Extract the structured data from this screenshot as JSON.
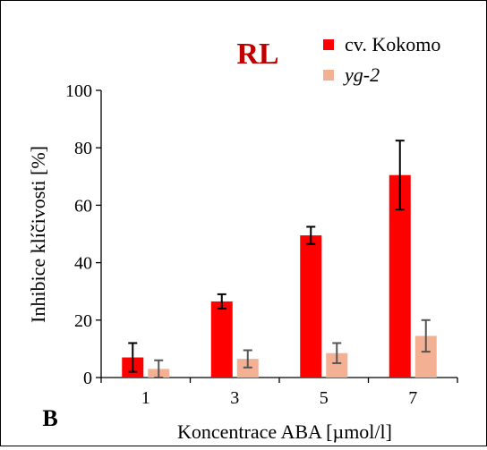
{
  "chart_data": {
    "type": "bar",
    "title": "RL",
    "panel_label": "B",
    "xlabel": "Koncentrace ABA [µmol/l]",
    "ylabel": "Inhibice klíčivosti [%]",
    "categories": [
      "1",
      "3",
      "5",
      "7"
    ],
    "ylim": [
      0,
      100
    ],
    "yticks": [
      "0",
      "20",
      "40",
      "60",
      "80",
      "100"
    ],
    "grid": false,
    "legend_position": "top-right",
    "series": [
      {
        "name": "cv. Kokomo",
        "color": "#ff0000",
        "values": [
          7,
          26.5,
          49.5,
          70.5
        ],
        "errors": [
          5,
          2.5,
          3,
          12
        ]
      },
      {
        "name": "yg-2",
        "color": "#f4b093",
        "values": [
          3,
          6.5,
          8.5,
          14.5
        ],
        "errors": [
          3,
          3,
          3.5,
          5.5
        ]
      }
    ]
  }
}
